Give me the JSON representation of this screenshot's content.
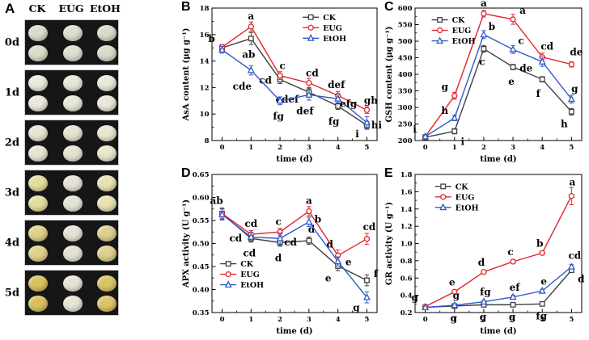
{
  "panel_a": {
    "label": "A",
    "columns": [
      "CK",
      "EUG",
      "EtOH"
    ],
    "photo_bg": "#161616",
    "rows": [
      {
        "label": "0d",
        "disc_colors": [
          "#d9dcc9",
          "#dcdecf",
          "#d8dbc7"
        ]
      },
      {
        "label": "1d",
        "disc_colors": [
          "#eae9dc",
          "#e7e7d8",
          "#e9e8d9"
        ]
      },
      {
        "label": "2d",
        "disc_colors": [
          "#e7e5d2",
          "#e6e4d0",
          "#e9e6cd"
        ]
      },
      {
        "label": "3d",
        "disc_colors": [
          "#e2dd9e",
          "#e4e3d5",
          "#e7e1b2"
        ]
      },
      {
        "label": "4d",
        "disc_colors": [
          "#e0d189",
          "#e5e2d3",
          "#ddcf8d"
        ]
      },
      {
        "label": "5d",
        "disc_colors": [
          "#d9c05f",
          "#e7e4d5",
          "#dbc466"
        ]
      }
    ]
  },
  "series_colors": {
    "CK": "#3f3f3f",
    "EUG": "#e2262c",
    "EtOH": "#2f5ac7"
  },
  "chart_data": [
    {
      "panel_label": "B",
      "type": "line",
      "xlabel": "time (d)",
      "ylabel": "AsA content (μg g⁻¹)",
      "x": [
        0,
        1,
        2,
        3,
        4,
        5
      ],
      "xlim": [
        -0.35,
        5.35
      ],
      "ylim": [
        8,
        18
      ],
      "xticks": [
        0,
        1,
        2,
        3,
        4,
        5
      ],
      "yticks": [
        8,
        10,
        12,
        14,
        16,
        18
      ],
      "ytick_labels": [
        "8",
        "10",
        "12",
        "14",
        "16",
        "18"
      ],
      "grid": false,
      "legend": {
        "fx": 0.55,
        "fy": 0.02
      },
      "series": [
        {
          "name": "CK",
          "color": "#3f3f3f",
          "marker": "square",
          "y": [
            15.0,
            15.7,
            12.6,
            11.65,
            10.6,
            9.15
          ],
          "err": [
            0.2,
            0.45,
            0.3,
            0.3,
            0.25,
            0.3
          ],
          "labels": [
            [
              "b",
              -13,
              -7
            ],
            [
              "ab",
              -3,
              24
            ],
            [
              "cd",
              -18,
              5
            ],
            [
              "cdef",
              -27,
              13
            ],
            [
              "fg",
              -5,
              23
            ],
            [
              "i",
              -12,
              15
            ]
          ]
        },
        {
          "name": "EUG",
          "color": "#e2262c",
          "marker": "circle",
          "y": [
            15.05,
            16.6,
            12.9,
            12.35,
            11.4,
            10.3
          ],
          "err": [
            0.2,
            0.35,
            0.3,
            0.35,
            0.3,
            0.25
          ],
          "labels": [
            null,
            [
              "a",
              0,
              -9
            ],
            [
              "c",
              3,
              -8
            ],
            [
              "cd",
              4,
              -8
            ],
            [
              "def",
              -2,
              -9
            ],
            [
              "gh",
              5,
              -8
            ]
          ]
        },
        {
          "name": "EtOH",
          "color": "#2f5ac7",
          "marker": "triangle",
          "y": [
            14.85,
            13.3,
            11.0,
            11.45,
            11.15,
            9.35
          ],
          "err": [
            0.25,
            0.35,
            0.3,
            0.4,
            0.3,
            0.45
          ],
          "labels": [
            null,
            [
              "cde",
              -11,
              24
            ],
            [
              "fg",
              -2,
              23
            ],
            [
              "def",
              -5,
              24
            ],
            [
              "efg",
              13,
              10
            ],
            [
              "hi",
              12,
              7
            ]
          ]
        }
      ]
    },
    {
      "panel_label": "C",
      "type": "line",
      "xlabel": "time (d)",
      "ylabel": "GSH content (μg g⁻¹)",
      "x": [
        0,
        1,
        2,
        3,
        4,
        5
      ],
      "xlim": [
        -0.35,
        5.35
      ],
      "ylim": [
        200,
        600
      ],
      "xticks": [
        0,
        1,
        2,
        3,
        4,
        5
      ],
      "yticks": [
        200,
        250,
        300,
        350,
        400,
        450,
        500,
        550,
        600
      ],
      "ytick_labels": [
        "200",
        "250",
        "300",
        "350",
        "400",
        "450",
        "500",
        "550",
        "600"
      ],
      "grid": false,
      "legend": {
        "fx": 0.1,
        "fy": 0.04
      },
      "series": [
        {
          "name": "CK",
          "color": "#3f3f3f",
          "marker": "square",
          "y": [
            210,
            228,
            477,
            422,
            385,
            287
          ],
          "err": [
            6,
            8,
            10,
            8,
            8,
            10
          ],
          "labels": [
            [
              "i",
              -13,
              -6
            ],
            [
              "i",
              10,
              17
            ],
            [
              "c",
              -2,
              20
            ],
            [
              "e",
              -2,
              22
            ],
            [
              "f",
              -5,
              22
            ],
            [
              "h",
              -9,
              19
            ]
          ]
        },
        {
          "name": "EUG",
          "color": "#e2262c",
          "marker": "circle",
          "y": [
            212,
            335,
            583,
            566,
            452,
            430
          ],
          "err": [
            6,
            10,
            10,
            15,
            12,
            8
          ],
          "labels": [
            null,
            [
              "g",
              -12,
              -7
            ],
            [
              "a",
              0,
              -9
            ],
            [
              "a",
              12,
              -7
            ],
            [
              "cd",
              6,
              -9
            ],
            [
              "de",
              6,
              -11
            ]
          ]
        },
        {
          "name": "EtOH",
          "color": "#2f5ac7",
          "marker": "triangle",
          "y": [
            212,
            268,
            520,
            475,
            438,
            325
          ],
          "err": [
            6,
            8,
            12,
            12,
            14,
            12
          ],
          "labels": [
            null,
            [
              "h",
              -12,
              -5
            ],
            [
              "b",
              10,
              -6
            ],
            [
              "c",
              10,
              -7
            ],
            [
              "de",
              -20,
              12
            ],
            [
              "g",
              4,
              -9
            ]
          ]
        }
      ]
    },
    {
      "panel_label": "D",
      "type": "line",
      "xlabel": "time (d)",
      "ylabel": "APX activity (U g⁻¹)",
      "x": [
        0,
        1,
        2,
        3,
        4,
        5
      ],
      "xlim": [
        -0.35,
        5.35
      ],
      "ylim": [
        0.35,
        0.65
      ],
      "xticks": [
        0,
        1,
        2,
        3,
        4,
        5
      ],
      "yticks": [
        0.35,
        0.4,
        0.45,
        0.5,
        0.55,
        0.6,
        0.65
      ],
      "ytick_labels": [
        "0.35",
        "0.40",
        "0.45",
        "0.50",
        "0.55",
        "0.60",
        "0.65"
      ],
      "grid": false,
      "legend": {
        "fx": 0.05,
        "fy": 0.6
      },
      "series": [
        {
          "name": "CK",
          "color": "#3f3f3f",
          "marker": "square",
          "y": [
            0.565,
            0.511,
            0.502,
            0.506,
            0.451,
            0.42
          ],
          "err": [
            0.012,
            0.008,
            0.008,
            0.008,
            0.01,
            0.012
          ],
          "labels": [
            [
              "ab",
              -7,
              -12
            ],
            [
              "cd",
              -19,
              4
            ],
            [
              "d",
              -2,
              23
            ],
            [
              "d",
              3,
              -10
            ],
            [
              "e",
              -12,
              19
            ],
            [
              "f",
              11,
              -4
            ]
          ]
        },
        {
          "name": "EUG",
          "color": "#e2262c",
          "marker": "circle",
          "y": [
            0.565,
            0.52,
            0.525,
            0.57,
            0.474,
            0.51
          ],
          "err": [
            0.01,
            0.008,
            0.008,
            0.01,
            0.012,
            0.012
          ],
          "labels": [
            null,
            [
              "cd",
              0,
              -9
            ],
            [
              "c",
              -2,
              -9
            ],
            [
              "a",
              0,
              -9
            ],
            [
              "d",
              -10,
              -10
            ],
            [
              "cd",
              3,
              -11
            ]
          ]
        },
        {
          "name": "EtOH",
          "color": "#2f5ac7",
          "marker": "triangle",
          "y": [
            0.563,
            0.514,
            0.511,
            0.547,
            0.461,
            0.383
          ],
          "err": [
            0.012,
            0.01,
            0.012,
            0.01,
            0.01,
            0.012
          ],
          "labels": [
            null,
            [
              "cd",
              -2,
              24
            ],
            [
              "cd",
              13,
              9
            ],
            [
              "b",
              11,
              1
            ],
            [
              "e",
              13,
              5
            ],
            [
              "g",
              -13,
              17
            ]
          ]
        }
      ]
    },
    {
      "panel_label": "E",
      "type": "line",
      "xlabel": "time (d)",
      "ylabel": "GR activity (U g⁻¹)",
      "x": [
        0,
        1,
        2,
        3,
        4,
        5
      ],
      "xlim": [
        -0.35,
        5.35
      ],
      "ylim": [
        0.2,
        1.8
      ],
      "xticks": [
        0,
        1,
        2,
        3,
        4,
        5
      ],
      "yticks": [
        0.2,
        0.4,
        0.6,
        0.8,
        1.0,
        1.2,
        1.4,
        1.6,
        1.8
      ],
      "ytick_labels": [
        "0.2",
        "0.4",
        "0.6",
        "0.8",
        "1.0",
        "1.2",
        "1.4",
        "1.6",
        "1.8"
      ],
      "grid": false,
      "legend": {
        "fx": 0.12,
        "fy": 0.04
      },
      "series": [
        {
          "name": "CK",
          "color": "#3f3f3f",
          "marker": "square",
          "y": [
            0.26,
            0.275,
            0.29,
            0.29,
            0.3,
            0.69
          ],
          "err": [
            0.01,
            0.008,
            0.008,
            0.008,
            0.01,
            0.02
          ],
          "labels": [
            [
              "g",
              -13,
              -8
            ],
            [
              "g",
              -1,
              19
            ],
            [
              "g",
              -1,
              19
            ],
            [
              "g",
              -1,
              19
            ],
            [
              "fg",
              -1,
              19
            ],
            [
              "d",
              12,
              15
            ]
          ]
        },
        {
          "name": "EUG",
          "color": "#e2262c",
          "marker": "circle",
          "y": [
            0.27,
            0.44,
            0.67,
            0.79,
            0.89,
            1.55
          ],
          "err": [
            0.01,
            0.015,
            0.02,
            0.02,
            0.02,
            0.1
          ],
          "labels": [
            null,
            [
              "e",
              -3,
              -8
            ],
            [
              "d",
              -3,
              -8
            ],
            [
              "c",
              -3,
              -8
            ],
            [
              "b",
              -3,
              -8
            ],
            [
              "a",
              1,
              -13
            ]
          ]
        },
        {
          "name": "EtOH",
          "color": "#2f5ac7",
          "marker": "triangle",
          "y": [
            0.26,
            0.285,
            0.325,
            0.38,
            0.45,
            0.73
          ],
          "err": [
            0.01,
            0.012,
            0.015,
            0.02,
            0.02,
            0.025
          ],
          "labels": [
            null,
            [
              "g",
              2,
              -8
            ],
            [
              "fg",
              2,
              -8
            ],
            [
              "ef",
              2,
              -8
            ],
            [
              "e",
              2,
              -8
            ],
            [
              "cd",
              4,
              -10
            ]
          ]
        }
      ]
    }
  ]
}
